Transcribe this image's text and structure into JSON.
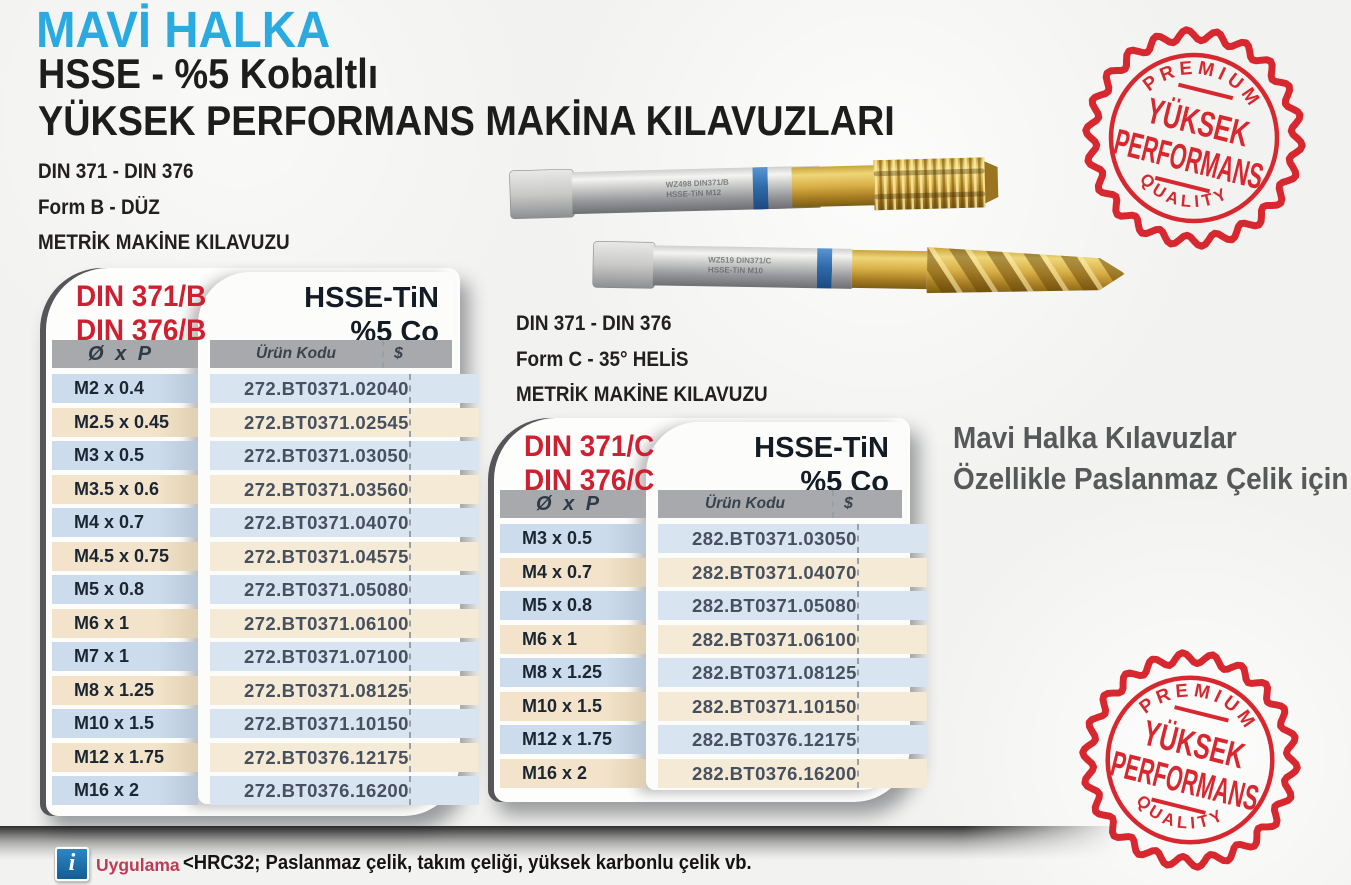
{
  "header": {
    "brand": "MAVİ HALKA",
    "subtitle": "HSSE - %5 Kobaltlı",
    "title": "YÜKSEK PERFORMANS MAKİNA KILAVUZLARI"
  },
  "left_section": {
    "din": "DIN 371 - DIN 376",
    "form": "Form B - DÜZ",
    "type": "METRİK MAKİNE KILAVUZU"
  },
  "mid_section": {
    "din": "DIN 371 - DIN 376",
    "form": "Form C - 35° HELİS",
    "type": "METRİK MAKİNE KILAVUZU"
  },
  "note": {
    "line1": "Mavi Halka Kılavuzlar",
    "line2": "Özellikle Paslanmaz Çelik için"
  },
  "tables": [
    {
      "din_labels": [
        "DIN 371/B",
        "DIN 376/B"
      ],
      "material": "HSSE-TiN",
      "cobalt": "%5 Co",
      "columns": {
        "size": "Ø x P",
        "code": "Ürün Kodu",
        "price": "$"
      },
      "rows": [
        [
          "M2 x 0.4",
          "272.BT0371.02040"
        ],
        [
          "M2.5 x 0.45",
          "272.BT0371.02545"
        ],
        [
          "M3 x 0.5",
          "272.BT0371.03050"
        ],
        [
          "M3.5 x 0.6",
          "272.BT0371.03560"
        ],
        [
          "M4 x 0.7",
          "272.BT0371.04070"
        ],
        [
          "M4.5 x 0.75",
          "272.BT0371.04575"
        ],
        [
          "M5 x 0.8",
          "272.BT0371.05080"
        ],
        [
          "M6 x 1",
          "272.BT0371.06100"
        ],
        [
          "M7 x 1",
          "272.BT0371.07100"
        ],
        [
          "M8 x 1.25",
          "272.BT0371.08125"
        ],
        [
          "M10 x 1.5",
          "272.BT0371.10150"
        ],
        [
          "M12 x 1.75",
          "272.BT0376.12175"
        ],
        [
          "M16 x 2",
          "272.BT0376.16200"
        ]
      ]
    },
    {
      "din_labels": [
        "DIN 371/C",
        "DIN 376/C"
      ],
      "material": "HSSE-TiN",
      "cobalt": "%5 Co",
      "columns": {
        "size": "Ø x P",
        "code": "Ürün Kodu",
        "price": "$"
      },
      "rows": [
        [
          "M3 x 0.5",
          "282.BT0371.03050"
        ],
        [
          "M4 x 0.7",
          "282.BT0371.04070"
        ],
        [
          "M5 x 0.8",
          "282.BT0371.05080"
        ],
        [
          "M6 x 1",
          "282.BT0371.06100"
        ],
        [
          "M8 x 1.25",
          "282.BT0371.08125"
        ],
        [
          "M10 x 1.5",
          "282.BT0371.10150"
        ],
        [
          "M12 x 1.75",
          "282.BT0376.12175"
        ],
        [
          "M16 x 2",
          "282.BT0376.16200"
        ]
      ]
    }
  ],
  "stamp": {
    "arc_top": "PREMIUM",
    "line1": "YÜKSEK",
    "line2": "PERFORMANS",
    "arc_bottom": "QUALITY"
  },
  "footer": {
    "icon": "i",
    "label": "Uygulama",
    "text": "<HRC32;  Paslanmaz çelik, takım çeliği, yüksek karbonlu çelik vb."
  },
  "colors": {
    "brand_cyan": "#29abe2",
    "din_red": "#ce2030",
    "stamp_red": "#d7282f",
    "row_blue": "#cddcec",
    "row_tan": "#f2e3ca",
    "header_gray": "#a7a9ac",
    "note_gray": "#57585a",
    "info_blue": "#1b76b5",
    "footer_label_red": "#bf3a55",
    "blue_ring": "#2f6cab",
    "gold_tin": "#d8ae46"
  }
}
